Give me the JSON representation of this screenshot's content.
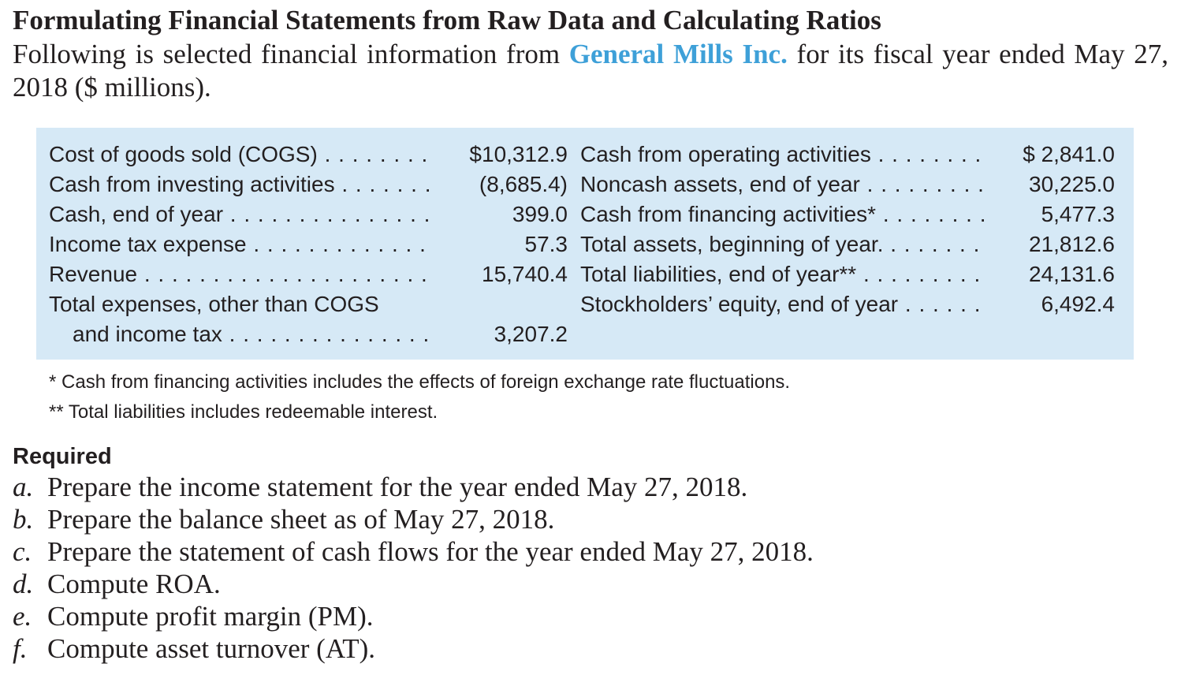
{
  "title": "Formulating Financial Statements from Raw Data and Calculating Ratios",
  "intro": {
    "before": "Following is selected financial information from ",
    "company": "General Mills Inc.",
    "after": " for its fiscal year ended May 27, 2018 ($ millions)."
  },
  "colors": {
    "box_background": "#d6e9f6",
    "company_link": "#3ea0d8",
    "text": "#231f20"
  },
  "left_items": [
    {
      "label": "Cost of goods sold (COGS)",
      "value": "$10,312.9"
    },
    {
      "label": "Cash from investing activities",
      "value": "(8,685.4)"
    },
    {
      "label": "Cash, end of year",
      "value": "399.0"
    },
    {
      "label": "Income tax expense",
      "value": "57.3"
    },
    {
      "label": "Revenue",
      "value": "15,740.4"
    },
    {
      "label": "Total expenses, other than COGS",
      "label_cont": "and income tax",
      "value": "3,207.2"
    }
  ],
  "right_items": [
    {
      "label": "Cash from operating activities",
      "value": "$ 2,841.0"
    },
    {
      "label": "Noncash assets, end of year",
      "value": "30,225.0"
    },
    {
      "label": "Cash from financing activities*",
      "value": "5,477.3"
    },
    {
      "label": "Total assets, beginning of year.",
      "value": "21,812.6"
    },
    {
      "label": "Total liabilities, end of year**",
      "value": "24,131.6"
    },
    {
      "label": "Stockholders’ equity, end of year",
      "value": "6,492.4"
    }
  ],
  "footnotes": [
    "* Cash from financing activities includes the effects of foreign exchange rate fluctuations.",
    "** Total liabilities includes redeemable interest."
  ],
  "required": {
    "heading": "Required",
    "tasks": [
      {
        "letter": "a.",
        "text": "Prepare the income statement for the year ended May 27, 2018."
      },
      {
        "letter": "b.",
        "text": "Prepare the balance sheet as of May 27, 2018."
      },
      {
        "letter": "c.",
        "text": "Prepare the statement of cash flows for the year ended May 27, 2018."
      },
      {
        "letter": "d.",
        "text": "Compute ROA."
      },
      {
        "letter": "e.",
        "text": "Compute profit margin (PM)."
      },
      {
        "letter": "f.",
        "text": "Compute asset turnover (AT)."
      }
    ]
  }
}
